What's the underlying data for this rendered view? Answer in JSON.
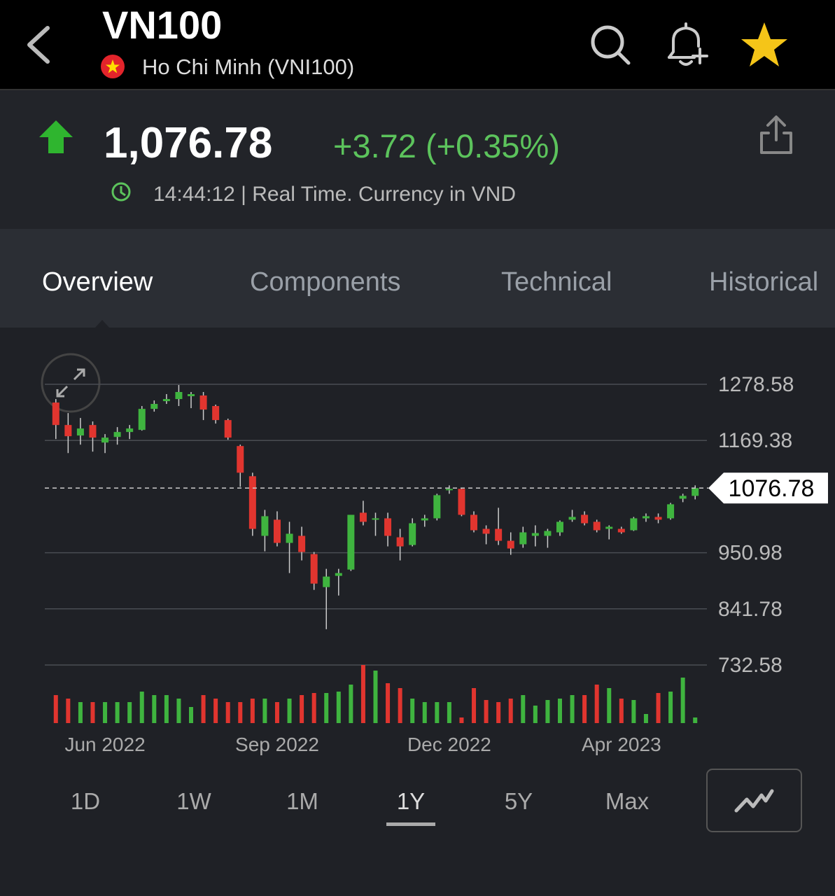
{
  "header": {
    "title": "VN100",
    "exchange": "Ho Chi Minh (VNI100)"
  },
  "quote": {
    "price": "1,076.78",
    "change": "+3.72 (+0.35%)",
    "status": "14:44:12 | Real Time. Currency in VND"
  },
  "tabs": [
    "Overview",
    "Components",
    "Technical",
    "Historical"
  ],
  "active_tab": 0,
  "ranges": [
    "1D",
    "1W",
    "1M",
    "1Y",
    "5Y",
    "Max"
  ],
  "active_range": 3,
  "chart_data": {
    "type": "candlestick",
    "categories": [
      null,
      null,
      null,
      null,
      "Jun 2022",
      null,
      null,
      null,
      null,
      null,
      null,
      null,
      null,
      null,
      null,
      null,
      null,
      null,
      "Sep 2022",
      null,
      null,
      null,
      null,
      null,
      null,
      null,
      null,
      null,
      null,
      null,
      null,
      null,
      "Dec 2022",
      null,
      null,
      null,
      null,
      null,
      null,
      null,
      null,
      null,
      null,
      null,
      null,
      null,
      "Apr 2023",
      null,
      null,
      null,
      null,
      null,
      null
    ],
    "open": [
      1243.1,
      1199.4,
      1179.0,
      1199.4,
      1165.3,
      1176.2,
      1185.8,
      1189.9,
      1230.8,
      1245.8,
      1249.9,
      1255.4,
      1256.8,
      1236.3,
      1209.0,
      1158.5,
      1099.8,
      983.8,
      1015.2,
      970.1,
      983.8,
      948.3,
      884.1,
      906.0,
      918.2,
      1028.8,
      1015.2,
      1017.9,
      981.0,
      966.0,
      1013.8,
      1017.9,
      1072.5,
      1075.2,
      1024.7,
      997.4,
      997.4,
      974.2,
      967.4,
      983.8,
      983.8,
      990.6,
      1015.2,
      1024.7,
      1011.1,
      997.4,
      997.4,
      994.7,
      1017.9,
      1020.6,
      1017.9,
      1056.1,
      1061.6
    ],
    "high": [
      1249.9,
      1222.6,
      1213.1,
      1206.3,
      1181.7,
      1195.3,
      1199.4,
      1236.3,
      1247.2,
      1259.5,
      1277.2,
      1263.6,
      1263.6,
      1239.0,
      1211.7,
      1161.2,
      1106.6,
      1034.3,
      1031.5,
      1011.1,
      1001.5,
      952.4,
      919.6,
      919.6,
      1024.7,
      1052.0,
      1028.8,
      1028.8,
      997.4,
      1017.9,
      1024.7,
      1065.7,
      1082.0,
      1076.6,
      1031.5,
      1004.2,
      1038.4,
      990.6,
      1001.5,
      1004.2,
      997.4,
      1013.8,
      1034.3,
      1031.5,
      1015.2,
      1004.2,
      1001.5,
      1020.6,
      1027.4,
      1027.4,
      1047.9,
      1065.7,
      1082.0
    ],
    "low": [
      1172.1,
      1144.8,
      1161.2,
      1147.6,
      1144.8,
      1161.2,
      1172.1,
      1188.5,
      1225.4,
      1240.4,
      1236.3,
      1232.2,
      1209.0,
      1202.2,
      1170.8,
      1079.3,
      983.8,
      953.7,
      963.3,
      911.4,
      936.0,
      878.7,
      802.2,
      867.7,
      915.5,
      1004.2,
      983.8,
      963.3,
      936.0,
      963.3,
      1001.5,
      1013.8,
      1065.7,
      1022.0,
      990.6,
      967.4,
      966.0,
      946.9,
      960.6,
      963.3,
      960.6,
      983.8,
      1011.1,
      1004.2,
      990.6,
      976.9,
      987.9,
      993.3,
      1011.1,
      1008.3,
      1015.2,
      1049.3,
      1054.7
    ],
    "close": [
      1199.4,
      1177.6,
      1192.6,
      1174.9,
      1174.9,
      1185.8,
      1192.6,
      1230.8,
      1240.4,
      1249.9,
      1263.6,
      1259.5,
      1229.4,
      1209.0,
      1174.9,
      1106.6,
      997.4,
      1022.0,
      970.1,
      987.9,
      952.4,
      890.9,
      904.6,
      911.4,
      1024.7,
      1011.1,
      1017.9,
      983.8,
      963.3,
      1008.3,
      1017.9,
      1062.9,
      1075.2,
      1024.7,
      994.7,
      987.9,
      974.2,
      959.2,
      990.6,
      989.2,
      993.3,
      1011.1,
      1020.6,
      1008.3,
      994.7,
      1001.5,
      990.6,
      1017.9,
      1022.0,
      1015.2,
      1045.2,
      1061.6,
      1076.78
    ],
    "volume": [
      40,
      35,
      30,
      30,
      30,
      30,
      30,
      45,
      40,
      40,
      35,
      23,
      40,
      35,
      30,
      30,
      35,
      35,
      30,
      35,
      40,
      43,
      43,
      45,
      55,
      83,
      75,
      57,
      50,
      35,
      30,
      30,
      30,
      8,
      50,
      33,
      30,
      35,
      40,
      25,
      33,
      35,
      40,
      40,
      55,
      50,
      35,
      33,
      13,
      43,
      45,
      65,
      8
    ],
    "ylim": [
      732.58,
      1278.58
    ],
    "yticks": [
      1278.58,
      1169.38,
      950.98,
      841.78,
      732.58
    ],
    "grid": true,
    "colors": {
      "up": "#3fb43f",
      "down": "#e1352f"
    }
  }
}
